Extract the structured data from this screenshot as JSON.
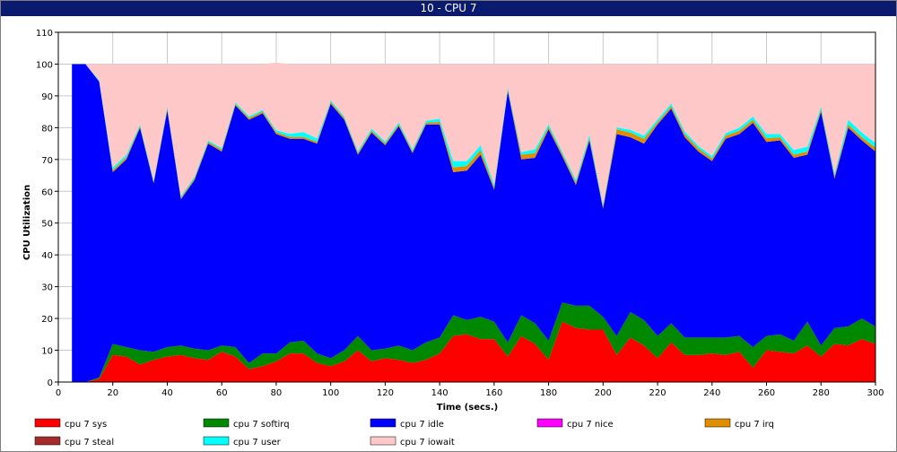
{
  "window": {
    "title": "10 - CPU 7"
  },
  "chart_data": {
    "type": "area",
    "stacked": true,
    "xlabel": "Time (secs.)",
    "ylabel": "CPU Utilization",
    "xlim": [
      0,
      300
    ],
    "ylim": [
      0,
      110
    ],
    "xticks": [
      0,
      20,
      40,
      60,
      80,
      100,
      120,
      140,
      160,
      180,
      200,
      220,
      240,
      260,
      280,
      300
    ],
    "yticks": [
      0,
      10,
      20,
      30,
      40,
      50,
      60,
      70,
      80,
      90,
      100,
      110
    ],
    "grid": true,
    "legend_position": "bottom",
    "x": [
      5,
      10,
      15,
      20,
      25,
      30,
      35,
      40,
      45,
      50,
      55,
      60,
      65,
      70,
      75,
      80,
      85,
      90,
      95,
      100,
      105,
      110,
      115,
      120,
      125,
      130,
      135,
      140,
      145,
      150,
      155,
      160,
      165,
      170,
      175,
      180,
      185,
      190,
      195,
      200,
      205,
      210,
      215,
      220,
      225,
      230,
      235,
      240,
      245,
      250,
      255,
      260,
      265,
      270,
      275,
      280,
      285,
      290,
      295,
      300
    ],
    "series": [
      {
        "name": "cpu 7 sys",
        "color": "#ff0000",
        "values": [
          0,
          0,
          1,
          8.5,
          8,
          5.5,
          7,
          8,
          8.5,
          7.5,
          7,
          9.5,
          8,
          4,
          5,
          6.5,
          9,
          9,
          6,
          5,
          6.5,
          10,
          6.5,
          7.5,
          7,
          6,
          7,
          9,
          14.5,
          15,
          13.5,
          13.5,
          8,
          14.5,
          12,
          7,
          19,
          17,
          16.5,
          16.5,
          8.5,
          14,
          11.5,
          7.5,
          12.5,
          8.5,
          8.5,
          9,
          8.5,
          9.5,
          4.5,
          10,
          9.5,
          9,
          11.5,
          8,
          12,
          11.5,
          13.5,
          12
        ]
      },
      {
        "name": "cpu 7 softirq",
        "color": "#008800",
        "values": [
          0,
          0,
          0.5,
          3.5,
          3,
          4.5,
          2.5,
          3,
          3,
          3,
          3,
          2,
          3,
          2,
          4,
          2.5,
          3.5,
          4,
          3,
          2.5,
          3.5,
          4.5,
          3.5,
          3,
          4.5,
          4,
          5.5,
          5,
          6.5,
          4.5,
          7,
          5.5,
          4.5,
          6.5,
          6.5,
          6,
          6,
          7,
          7.5,
          4,
          6,
          8,
          8,
          7,
          6,
          5.5,
          5.5,
          5,
          5.5,
          5,
          6.5,
          4.5,
          5.5,
          4,
          7.5,
          3.5,
          5,
          6,
          6.5,
          5.5
        ]
      },
      {
        "name": "cpu 7 idle",
        "color": "#0000ff",
        "values": [
          100,
          100,
          93,
          54,
          59,
          70,
          53,
          74.5,
          46,
          53,
          65,
          61,
          76,
          76.5,
          75.5,
          69,
          64,
          63.5,
          66,
          80,
          72.5,
          57,
          68.5,
          64,
          69,
          62,
          68.5,
          67,
          45,
          47,
          51,
          41.5,
          79,
          49,
          52,
          66.5,
          46,
          38,
          52,
          34,
          63.5,
          55,
          55.5,
          66.5,
          67.5,
          63,
          58.5,
          55.5,
          62.5,
          63.5,
          70.5,
          61,
          61,
          57.5,
          52.5,
          73.5,
          47,
          62.5,
          56,
          55
        ]
      },
      {
        "name": "cpu 7 nice",
        "color": "#ff00ff",
        "values": [
          0,
          0,
          0,
          0,
          0,
          0,
          0,
          0,
          0,
          0,
          0,
          0,
          0,
          0,
          0,
          0,
          0,
          0,
          0,
          0,
          0,
          0,
          0,
          0,
          0,
          0,
          0,
          0,
          0,
          0,
          0,
          0,
          0,
          0,
          0,
          0,
          0,
          0,
          0,
          0,
          0,
          0,
          0,
          0,
          0,
          0,
          0,
          0,
          0,
          0,
          0,
          0,
          0,
          0,
          0,
          0,
          0,
          0,
          0,
          0
        ]
      },
      {
        "name": "cpu 7 irq",
        "color": "#e08e00",
        "values": [
          0,
          0,
          0,
          0.7,
          0.7,
          0.5,
          0.5,
          0.6,
          0.5,
          0.6,
          0.5,
          0.6,
          0.5,
          0.6,
          0.6,
          0.6,
          0.6,
          0.6,
          0.6,
          0.6,
          0.6,
          0.6,
          0.6,
          0.6,
          0.6,
          0.6,
          0.6,
          0.8,
          1.5,
          1.5,
          1.5,
          0.8,
          0.6,
          1.5,
          1.5,
          0.8,
          0.8,
          0.8,
          0.8,
          0.6,
          1.5,
          1.5,
          1.5,
          0.8,
          0.8,
          1,
          1,
          0.8,
          1,
          1,
          1,
          1.2,
          1,
          1,
          1,
          0.8,
          0.8,
          1,
          1,
          1.2
        ]
      },
      {
        "name": "cpu 7 steal",
        "color": "#a52a2a",
        "values": [
          0,
          0,
          0,
          0,
          0,
          0,
          0,
          0,
          0,
          0,
          0,
          0,
          0,
          0,
          0,
          0,
          0,
          0,
          0,
          0,
          0,
          0,
          0,
          0,
          0,
          0,
          0,
          0,
          0,
          0,
          0,
          0,
          0,
          0,
          0,
          0,
          0,
          0,
          0,
          0,
          0,
          0,
          0,
          0,
          0,
          0,
          0,
          0,
          0,
          0,
          0,
          0,
          0,
          0,
          0,
          0,
          0,
          0,
          0,
          0
        ]
      },
      {
        "name": "cpu 7 user",
        "color": "#00ffff",
        "values": [
          0,
          0,
          0.3,
          0.8,
          0.8,
          0.5,
          0.5,
          0.5,
          0.5,
          0.5,
          0.5,
          0.5,
          0.5,
          0.5,
          0.5,
          0.6,
          1,
          1.5,
          1,
          0.5,
          0.5,
          0.6,
          0.6,
          0.6,
          0.6,
          0.6,
          0.6,
          1,
          2,
          1.5,
          1.5,
          0.8,
          0.6,
          0.8,
          1.2,
          0.8,
          0.6,
          0.8,
          1,
          0.6,
          0.6,
          0.8,
          1,
          0.8,
          0.8,
          0.8,
          0.8,
          0.8,
          0.8,
          1,
          1,
          1.3,
          1,
          1.5,
          1.5,
          0.8,
          0.8,
          1.5,
          1.5,
          1.5
        ]
      },
      {
        "name": "cpu 7 iowait",
        "color": "#ffc8c8",
        "values": [
          0,
          0,
          5.2,
          32.5,
          28.5,
          19,
          36.5,
          13.4,
          41.5,
          35.4,
          24,
          26.4,
          12,
          16.4,
          14.4,
          21.3,
          21.9,
          21.4,
          23.4,
          11.4,
          16.4,
          27.3,
          20.3,
          24.3,
          18.3,
          26.8,
          17.8,
          17.2,
          30.5,
          30.5,
          25.5,
          37.9,
          7.3,
          27.7,
          26.8,
          18.9,
          27.6,
          36.4,
          22.2,
          44.3,
          19.9,
          20.7,
          22.5,
          17.4,
          12.4,
          21.2,
          25.7,
          28.9,
          21.7,
          20,
          16.5,
          22,
          22,
          27,
          26,
          13.4,
          34.4,
          17.5,
          21.5,
          24.8
        ]
      }
    ]
  }
}
